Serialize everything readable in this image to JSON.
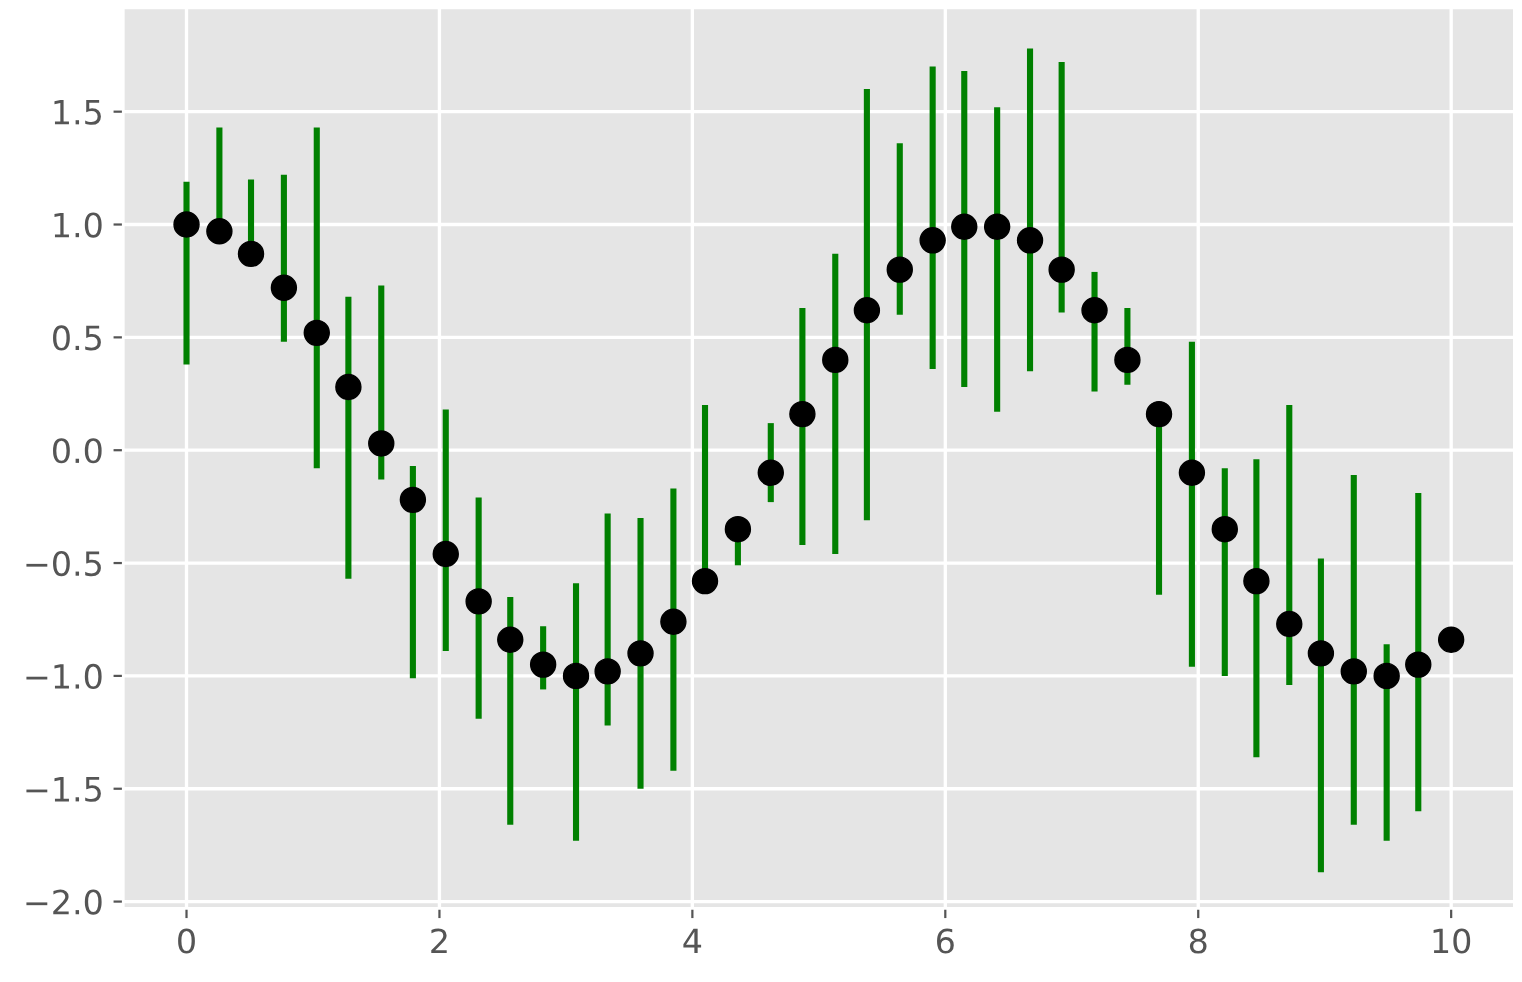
{
  "chart_data": {
    "type": "scatter",
    "x": [
      0,
      0.26,
      0.51,
      0.77,
      1.03,
      1.28,
      1.54,
      1.79,
      2.05,
      2.31,
      2.56,
      2.82,
      3.08,
      3.33,
      3.59,
      3.85,
      4.1,
      4.36,
      4.62,
      4.87,
      5.13,
      5.38,
      5.64,
      5.9,
      6.15,
      6.41,
      6.67,
      6.92,
      7.18,
      7.44,
      7.69,
      7.95,
      8.21,
      8.46,
      8.72,
      8.97,
      9.23,
      9.49,
      9.74,
      10
    ],
    "series": [
      {
        "color": "#008000",
        "colors": [
          "#000000",
          "#000000",
          "#000000",
          "#000000",
          "#000000",
          "#000000",
          "#000000",
          "#000000",
          "#000000",
          "#000000",
          "#000000",
          "#000000",
          "#000000",
          "#000000",
          "#000000",
          "#000000",
          "#000000",
          "#000000",
          "#000000",
          "#000000",
          "#000000",
          "#000000",
          "#000000",
          "#000000",
          "#000000",
          "#000000",
          "#000000",
          "#000000",
          "#000000",
          "#000000",
          "#000000",
          "#000000",
          "#000000",
          "#000000",
          "#000000",
          "#000000",
          "#000000",
          "#000000",
          "#000000",
          "#000000"
        ],
        "values": [
          1.0,
          0.97,
          0.87,
          0.72,
          0.52,
          0.28,
          0.03,
          -0.22,
          -0.46,
          -0.67,
          -0.84,
          -0.95,
          -1.0,
          -0.98,
          -0.9,
          -0.76,
          -0.58,
          -0.35,
          -0.1,
          0.16,
          0.4,
          0.62,
          0.8,
          0.93,
          0.99,
          0.99,
          0.93,
          0.8,
          0.62,
          0.4,
          0.16,
          -0.1,
          -0.35,
          -0.58,
          -0.77,
          -0.9,
          -0.98,
          -1.0,
          -0.95,
          -0.84
        ],
        "errors": [
          [
            0.38,
            1.19
          ],
          [
            0.97,
            1.43
          ],
          [
            0.87,
            1.2
          ],
          [
            0.48,
            1.22
          ],
          [
            -0.08,
            1.43
          ],
          [
            -0.57,
            0.68
          ],
          [
            -0.13,
            0.73
          ],
          [
            -1.01,
            -0.07
          ],
          [
            -0.89,
            0.18
          ],
          [
            -1.19,
            -0.21
          ],
          [
            -1.66,
            -0.65
          ],
          [
            -1.06,
            -0.78
          ],
          [
            -1.73,
            -0.59
          ],
          [
            -1.22,
            -0.28
          ],
          [
            -1.5,
            -0.3
          ],
          [
            -1.42,
            -0.17
          ],
          [
            -0.58,
            0.2
          ],
          [
            -0.51,
            -0.32
          ],
          [
            -0.23,
            0.12
          ],
          [
            -0.42,
            0.63
          ],
          [
            -0.46,
            0.87
          ],
          [
            -0.31,
            1.6
          ],
          [
            0.6,
            1.36
          ],
          [
            0.36,
            1.7
          ],
          [
            0.28,
            1.68
          ],
          [
            0.17,
            1.52
          ],
          [
            0.35,
            1.78
          ],
          [
            0.61,
            1.72
          ],
          [
            0.26,
            0.79
          ],
          [
            0.29,
            0.63
          ],
          [
            -0.64,
            0.16
          ],
          [
            -0.96,
            0.48
          ],
          [
            -1.0,
            -0.08
          ],
          [
            -1.36,
            -0.04
          ],
          [
            -1.04,
            0.2
          ],
          [
            -1.87,
            -0.48
          ],
          [
            -1.66,
            -0.11
          ],
          [
            -1.73,
            -0.86
          ],
          [
            -1.6,
            -0.19
          ],
          null
        ]
      }
    ],
    "marker": "circle",
    "xlim": [
      -0.5,
      10.5
    ],
    "ylim": [
      -2.03,
      1.96
    ],
    "xticks": [
      0,
      2,
      4,
      6,
      8,
      10
    ],
    "yticks": [
      {
        "value": -2.0,
        "label": "−2.0"
      },
      {
        "value": -1.5,
        "label": "−1.5"
      },
      {
        "value": -1.0,
        "label": "−1.0"
      },
      {
        "value": -0.5,
        "label": "−0.5"
      },
      {
        "value": 0.0,
        "label": "0.0"
      },
      {
        "value": 0.5,
        "label": "0.5"
      },
      {
        "value": 1.0,
        "label": "1.0"
      },
      {
        "value": 1.5,
        "label": "1.5"
      }
    ],
    "grid": true
  }
}
